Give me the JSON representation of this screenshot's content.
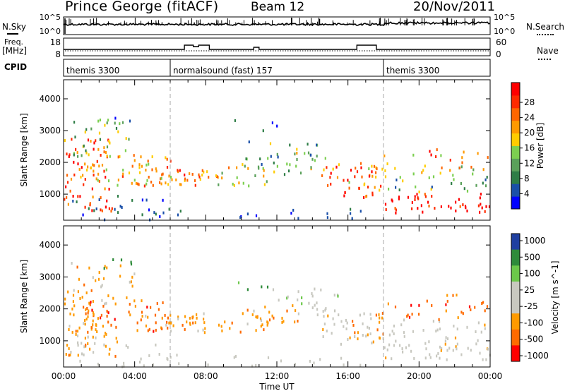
{
  "header": {
    "station": "Prince George (fitACF)",
    "beam": "Beam 12",
    "date": "20/Nov/2011"
  },
  "left_labels": {
    "nsky": "N.Sky",
    "freq": "Freq.",
    "freq_unit": "[MHz]",
    "cpid": "CPID"
  },
  "right_labels": {
    "nsearch": "N.Search",
    "nave": "Nave"
  },
  "panels": {
    "noise": {
      "left_ticks": [
        "10^5",
        "10^0"
      ],
      "right_ticks": [
        "10^5",
        "10^0"
      ]
    },
    "freq": {
      "left_ticks": [
        "18",
        "8"
      ],
      "right_ticks": [
        "60",
        "0"
      ]
    },
    "cpid": {
      "segments": [
        {
          "label": "themis 3300",
          "start_hour": 0,
          "end_hour": 6
        },
        {
          "label": "normalsound (fast) 157",
          "start_hour": 6,
          "end_hour": 18
        },
        {
          "label": "themis 3300",
          "start_hour": 18,
          "end_hour": 24
        }
      ]
    }
  },
  "chart_data": [
    {
      "type": "heatmap",
      "name": "power",
      "ylabel": "Slant Range [km]",
      "ylim": [
        180,
        4600
      ],
      "yticks": [
        "1000",
        "2000",
        "3000",
        "4000"
      ],
      "xlim": [
        0,
        24
      ],
      "colorbar": {
        "label": "Power [dB]",
        "ticks": [
          "4",
          "8",
          "12",
          "16",
          "20",
          "24",
          "28"
        ],
        "colors": [
          "#0000ff",
          "#1a4fa8",
          "#2e7d46",
          "#5aa05a",
          "#7ccf50",
          "#ffcc00",
          "#ff9a00",
          "#ff6600",
          "#ff2a00",
          "#ff0000"
        ]
      }
    },
    {
      "type": "heatmap",
      "name": "velocity",
      "ylabel": "Slant Range [km]",
      "ylim": [
        180,
        4600
      ],
      "yticks": [
        "1000",
        "2000",
        "3000",
        "4000"
      ],
      "xlim": [
        0,
        24
      ],
      "colorbar": {
        "label": "Velocity [m s^-1]",
        "ticks": [
          "1000",
          "500",
          "100",
          "25",
          "-25",
          "-100",
          "-500",
          "-1000"
        ],
        "colors": [
          "#1f3fa0",
          "#2e8b3a",
          "#6cc84a",
          "#c8c8c0",
          "#c8c8c0",
          "#ff9a00",
          "#ff6a00",
          "#ff0000"
        ]
      }
    }
  ],
  "xaxis": {
    "label": "Time UT",
    "ticks": [
      "00:00",
      "04:00",
      "08:00",
      "12:00",
      "16:00",
      "20:00",
      "00:00"
    ]
  },
  "colors": {
    "frame": "#000000",
    "dashed_divider": "#aaaaaa",
    "ground_scatter": "#c0c0b8"
  }
}
